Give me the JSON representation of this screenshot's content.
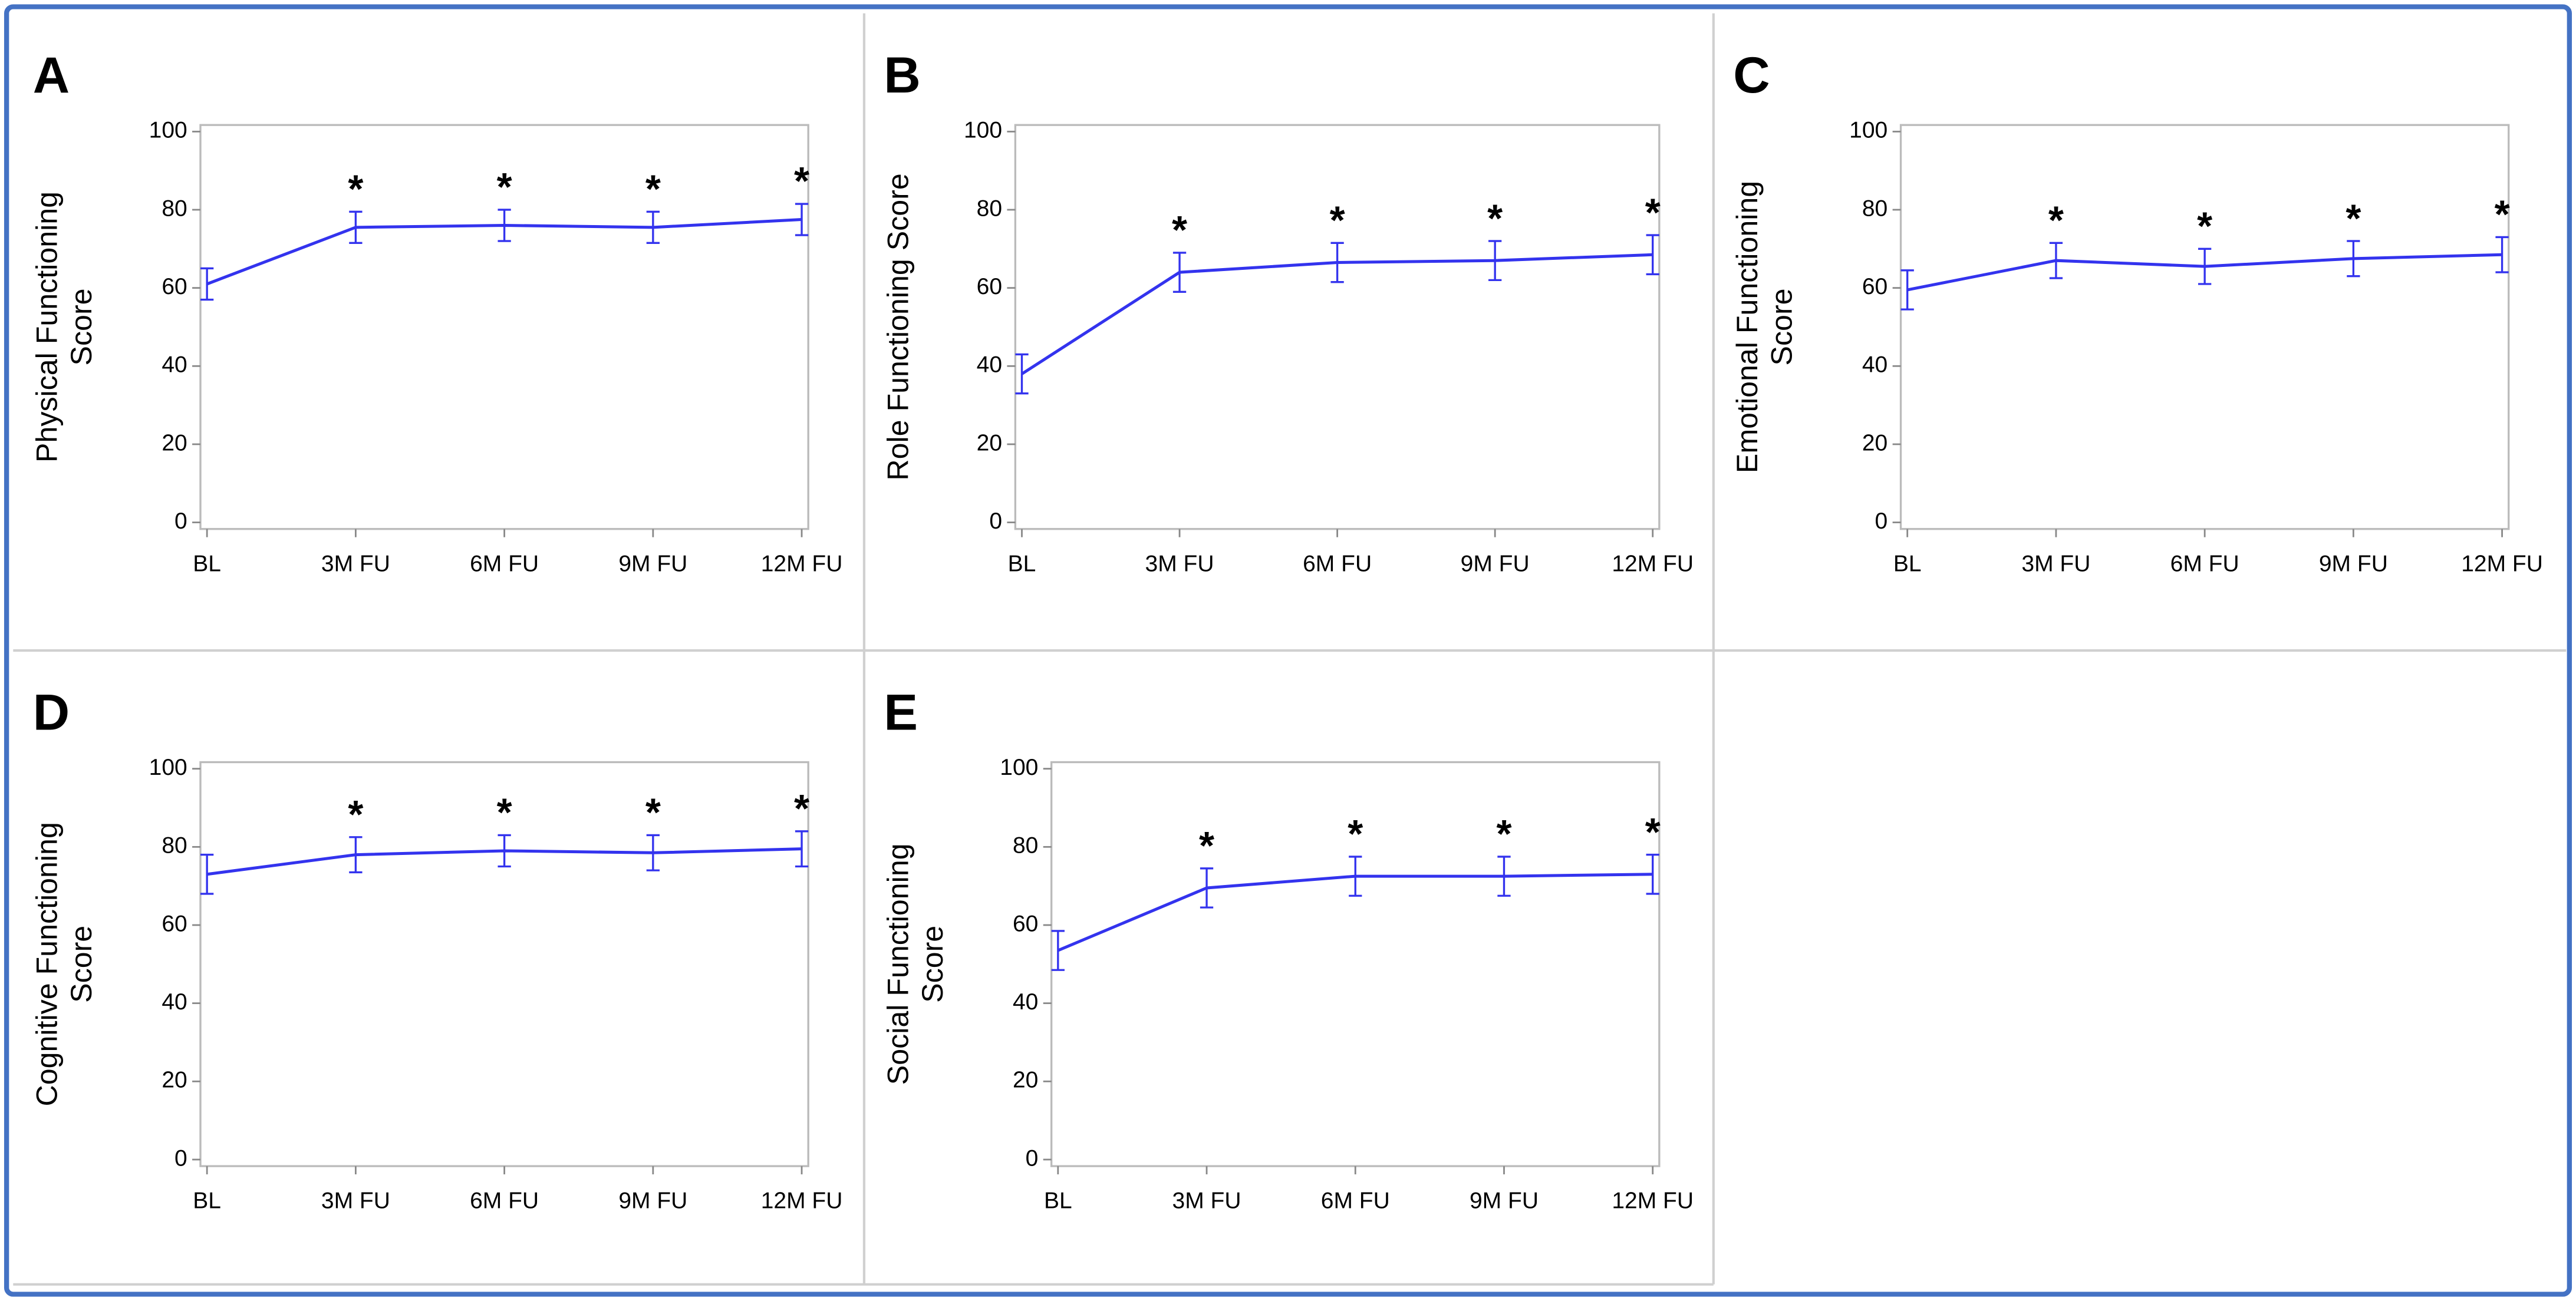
{
  "chart_data": [
    {
      "type": "line",
      "panel": "A",
      "ylabel": "Physical Functioning Score",
      "categories": [
        "BL",
        "3M FU",
        "6M FU",
        "9M FU",
        "12M FU"
      ],
      "series": [
        {
          "color": "#3333ee",
          "values": [
            61,
            75.5,
            76,
            75.5,
            77.5
          ],
          "errors": [
            4,
            4,
            4,
            4,
            4
          ]
        }
      ],
      "markers": [
        null,
        "*",
        "*",
        "*",
        "*"
      ],
      "ylim": [
        0,
        100
      ],
      "yticks": [
        0,
        20,
        40,
        60,
        80,
        100
      ]
    },
    {
      "type": "line",
      "panel": "B",
      "ylabel": "Role Functioning Score",
      "categories": [
        "BL",
        "3M FU",
        "6M FU",
        "9M FU",
        "12M FU"
      ],
      "series": [
        {
          "color": "#3333ee",
          "values": [
            38,
            64,
            66.5,
            67,
            68.5
          ],
          "errors": [
            5,
            5,
            5,
            5,
            5
          ]
        }
      ],
      "markers": [
        null,
        "*",
        "*",
        "*",
        "*"
      ],
      "ylim": [
        0,
        100
      ],
      "yticks": [
        0,
        20,
        40,
        60,
        80,
        100
      ]
    },
    {
      "type": "line",
      "panel": "C",
      "ylabel": "Emotional Functioning Score",
      "categories": [
        "BL",
        "3M FU",
        "6M FU",
        "9M FU",
        "12M FU"
      ],
      "series": [
        {
          "color": "#3333ee",
          "values": [
            59.5,
            67,
            65.5,
            67.5,
            68.5
          ],
          "errors": [
            5,
            4.5,
            4.5,
            4.5,
            4.5
          ]
        }
      ],
      "markers": [
        null,
        "*",
        "*",
        "*",
        "*"
      ],
      "ylim": [
        0,
        100
      ],
      "yticks": [
        0,
        20,
        40,
        60,
        80,
        100
      ]
    },
    {
      "type": "line",
      "panel": "D",
      "ylabel": "Cognitive Functioning Score",
      "categories": [
        "BL",
        "3M FU",
        "6M FU",
        "9M FU",
        "12M FU"
      ],
      "series": [
        {
          "color": "#3333ee",
          "values": [
            73,
            78,
            79,
            78.5,
            79.5
          ],
          "errors": [
            5,
            4.5,
            4,
            4.5,
            4.5
          ]
        }
      ],
      "markers": [
        null,
        "*",
        "*",
        "*",
        "*"
      ],
      "ylim": [
        0,
        100
      ],
      "yticks": [
        0,
        20,
        40,
        60,
        80,
        100
      ]
    },
    {
      "type": "line",
      "panel": "E",
      "ylabel": "Social Functioning Score",
      "categories": [
        "BL",
        "3M FU",
        "6M FU",
        "9M FU",
        "12M FU"
      ],
      "series": [
        {
          "color": "#3333ee",
          "values": [
            53.5,
            69.5,
            72.5,
            72.5,
            73
          ],
          "errors": [
            5,
            5,
            5,
            5,
            5
          ]
        }
      ],
      "markers": [
        null,
        "*",
        "*",
        "*",
        "*"
      ],
      "ylim": [
        0,
        100
      ],
      "yticks": [
        0,
        20,
        40,
        60,
        80,
        100
      ]
    }
  ]
}
